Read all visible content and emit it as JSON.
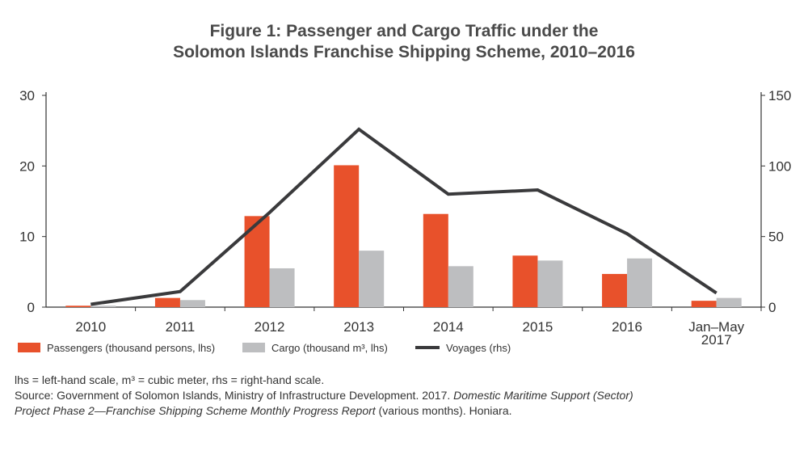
{
  "chart_data": {
    "type": "bar+line",
    "title_line1": "Figure 1: Passenger and Cargo Traffic under the",
    "title_line2": "Solomon Islands Franchise Shipping Scheme, 2010–2016",
    "categories": [
      "2010",
      "2011",
      "2012",
      "2013",
      "2014",
      "2015",
      "2016",
      "Jan–May 2017"
    ],
    "category_labels": [
      [
        "2010"
      ],
      [
        "2011"
      ],
      [
        "2012"
      ],
      [
        "2013"
      ],
      [
        "2014"
      ],
      [
        "2015"
      ],
      [
        "2016"
      ],
      [
        "Jan–May",
        "2017"
      ]
    ],
    "left_axis": {
      "ylim": [
        0,
        30
      ],
      "ticks": [
        "0",
        "10",
        "20",
        "30"
      ],
      "tick_values": [
        0,
        10,
        20,
        30
      ]
    },
    "right_axis": {
      "ylim": [
        0,
        150
      ],
      "ticks": [
        "0",
        "50",
        "100",
        "150"
      ],
      "tick_values": [
        0,
        50,
        100,
        150
      ]
    },
    "series": [
      {
        "name": "Passengers (thousand persons, lhs)",
        "type": "bar",
        "axis": "left",
        "color": "#e8512b",
        "values": [
          0.2,
          1.3,
          12.9,
          20.1,
          13.2,
          7.3,
          4.7,
          0.9
        ]
      },
      {
        "name": "Cargo (thousand m³, lhs)",
        "type": "bar",
        "axis": "left",
        "color": "#bdbec0",
        "values": [
          0.2,
          1.0,
          5.5,
          8.0,
          5.8,
          6.6,
          6.9,
          1.3
        ]
      },
      {
        "name": "Voyages (rhs)",
        "type": "line",
        "axis": "right",
        "color": "#3a3a3c",
        "values": [
          2,
          11,
          67,
          126,
          80,
          83,
          52,
          10
        ]
      }
    ],
    "legend_position": "bottom",
    "grid": false
  },
  "notes": {
    "line1": "lhs = left-hand scale, m³ = cubic meter, rhs = right-hand scale.",
    "line2_plain": "Source: Government of Solomon Islands, Ministry of Infrastructure Development. 2017. ",
    "line2_italic": "Domestic Maritime Support (Sector)",
    "line3_italic": "Project Phase 2—Franchise Shipping Scheme Monthly Progress Report",
    "line3_plain": " (various months). Honiara."
  }
}
